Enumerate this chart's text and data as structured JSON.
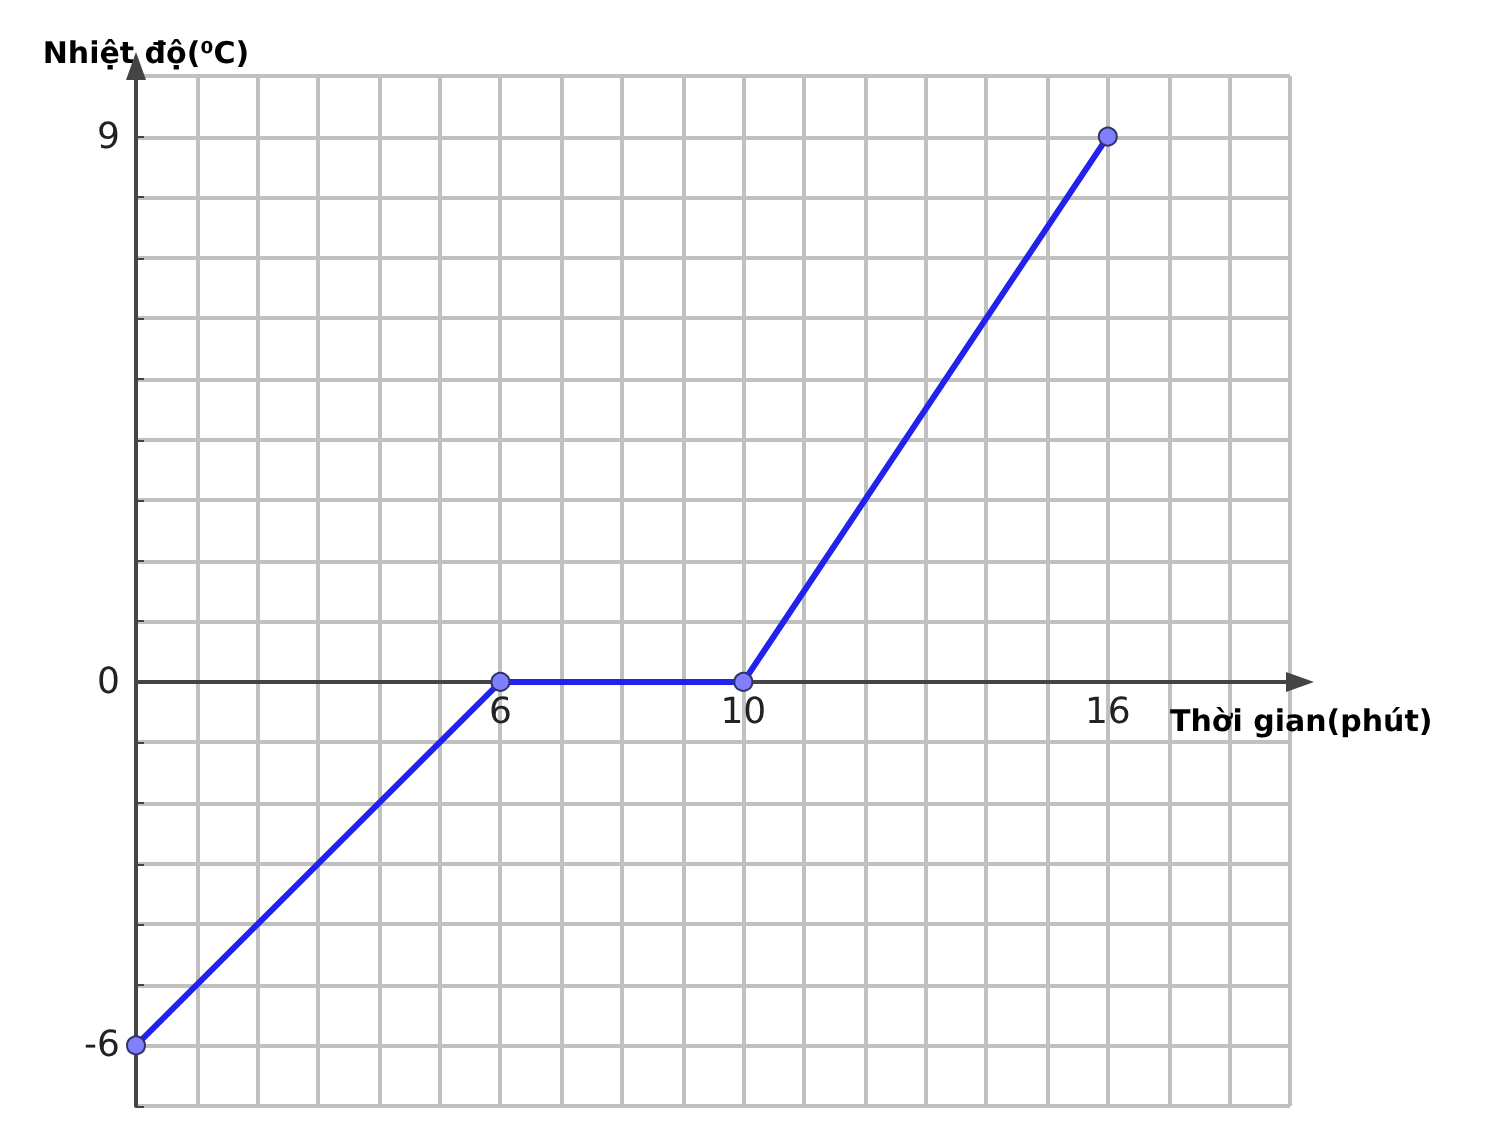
{
  "chart_data": {
    "type": "line",
    "xlabel": "Thời gian(phút)",
    "ylabel": "Nhiệt độ(⁰C)",
    "x": [
      0,
      6,
      10,
      16
    ],
    "series": [
      {
        "color": "#2222ee",
        "values": [
          -6,
          0,
          0,
          9
        ]
      }
    ],
    "xlim": [
      0,
      19
    ],
    "ylim": [
      -7,
      10
    ],
    "xticks": [
      {
        "value": 0,
        "label": null
      },
      {
        "value": 1,
        "label": null
      },
      {
        "value": 2,
        "label": null
      },
      {
        "value": 3,
        "label": null
      },
      {
        "value": 4,
        "label": null
      },
      {
        "value": 5,
        "label": null
      },
      6,
      {
        "value": 7,
        "label": null
      },
      {
        "value": 8,
        "label": null
      },
      {
        "value": 9,
        "label": null
      },
      10,
      {
        "value": 11,
        "label": null
      },
      {
        "value": 12,
        "label": null
      },
      {
        "value": 13,
        "label": null
      },
      {
        "value": 14,
        "label": null
      },
      {
        "value": 15,
        "label": null
      },
      16,
      {
        "value": 17,
        "label": null
      },
      {
        "value": 18,
        "label": null
      },
      {
        "value": 19,
        "label": null
      }
    ],
    "yticks": [
      {
        "value": -7,
        "label": null
      },
      -6,
      {
        "value": -5,
        "label": null
      },
      {
        "value": -4,
        "label": null
      },
      {
        "value": -3,
        "label": null
      },
      {
        "value": -2,
        "label": null
      },
      {
        "value": -1,
        "label": null
      },
      0,
      {
        "value": 1,
        "label": null
      },
      {
        "value": 2,
        "label": null
      },
      {
        "value": 3,
        "label": null
      },
      {
        "value": 4,
        "label": null
      },
      {
        "value": 5,
        "label": null
      },
      {
        "value": 6,
        "label": null
      },
      {
        "value": 7,
        "label": null
      },
      {
        "value": 8,
        "label": null
      },
      9,
      {
        "value": 10,
        "label": null
      }
    ],
    "grid": true,
    "marker": "circle",
    "line_style": "solid"
  }
}
